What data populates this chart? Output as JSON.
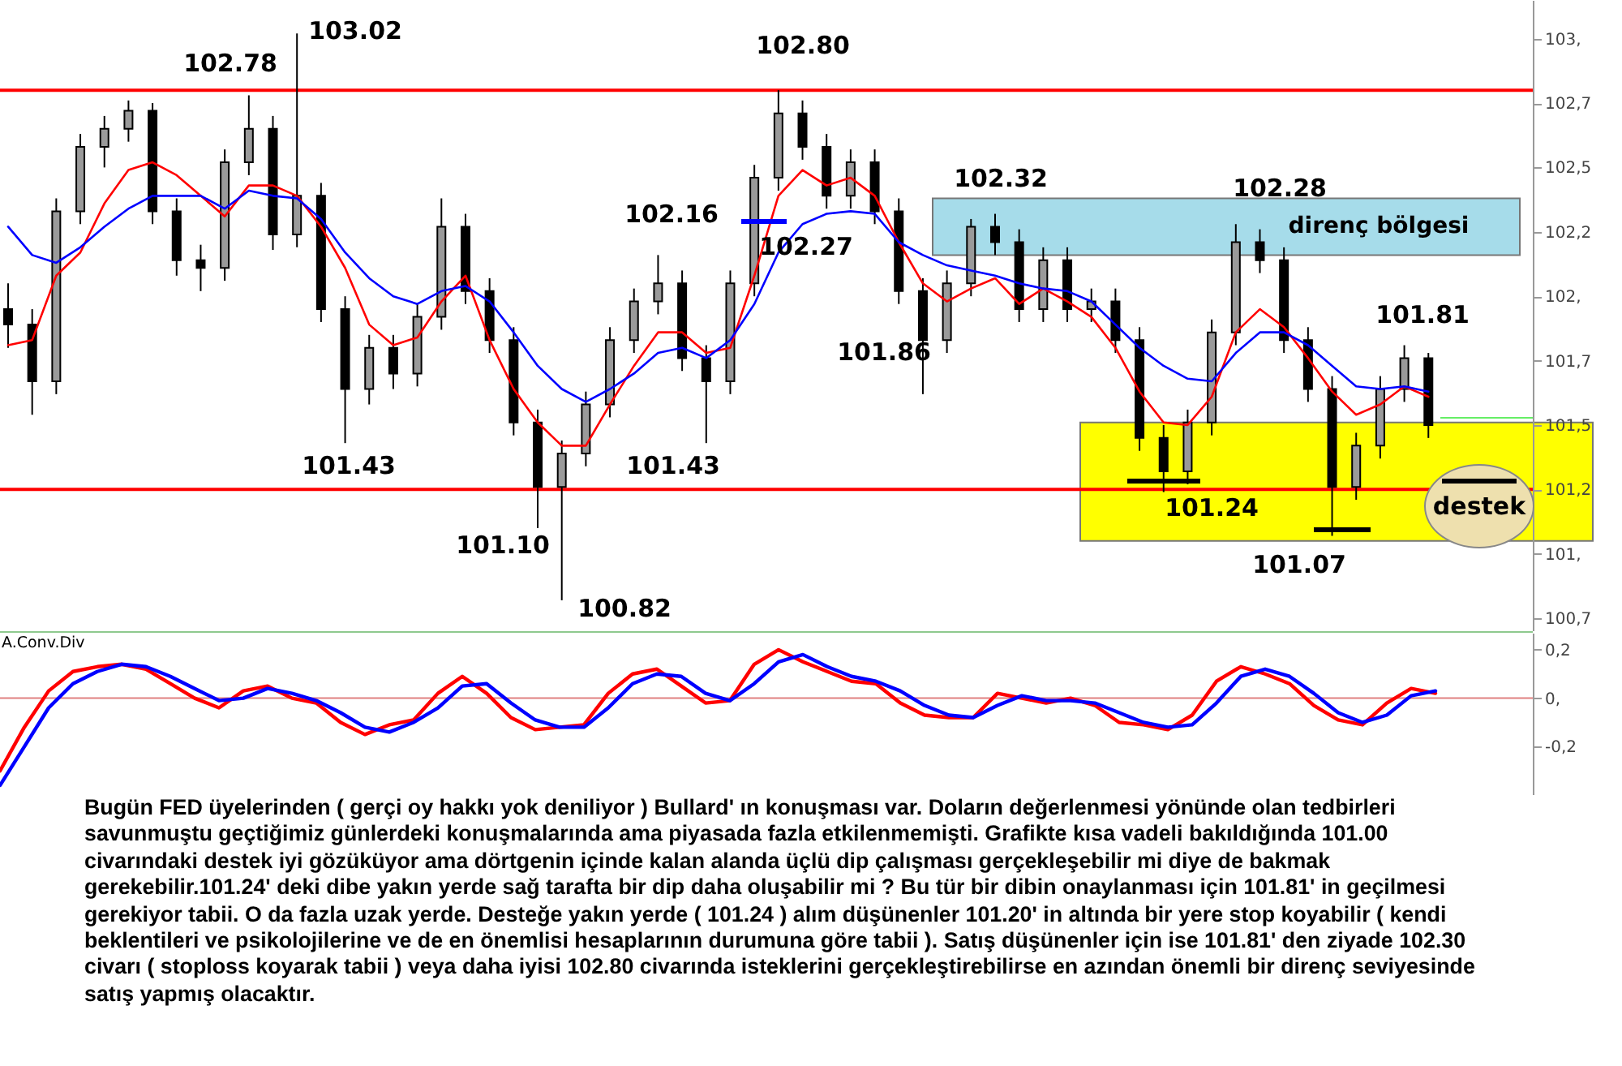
{
  "chart_data": [
    {
      "type": "candlestick",
      "categories": [
        null,
        null,
        null,
        null,
        null,
        null,
        null,
        null,
        null,
        null,
        null,
        null,
        null,
        null,
        null,
        null,
        null,
        null,
        null,
        null,
        null,
        null,
        null,
        null,
        null,
        null,
        null,
        null,
        null,
        null,
        null,
        null,
        null,
        null,
        null,
        null,
        null,
        null,
        null,
        null,
        null,
        null,
        null,
        null,
        null,
        null,
        null,
        null,
        null,
        null,
        null,
        null,
        null,
        null,
        null,
        null,
        null,
        null,
        null,
        null
      ],
      "color": "#000000",
      "ohlc": [
        [
          101.95,
          102.05,
          101.8,
          101.89
        ],
        [
          101.89,
          101.95,
          101.54,
          101.67
        ],
        [
          101.67,
          102.38,
          101.62,
          102.33
        ],
        [
          102.33,
          102.63,
          102.28,
          102.58
        ],
        [
          102.58,
          102.7,
          102.5,
          102.65
        ],
        [
          102.65,
          102.76,
          102.6,
          102.72
        ],
        [
          102.72,
          102.75,
          102.28,
          102.33
        ],
        [
          102.33,
          102.38,
          102.08,
          102.14
        ],
        [
          102.14,
          102.2,
          102.02,
          102.11
        ],
        [
          102.11,
          102.57,
          102.06,
          102.52
        ],
        [
          102.52,
          102.78,
          102.47,
          102.65
        ],
        [
          102.65,
          102.7,
          102.18,
          102.24
        ],
        [
          102.24,
          103.02,
          102.19,
          102.39
        ],
        [
          102.39,
          102.44,
          101.9,
          101.95
        ],
        [
          101.95,
          102.0,
          101.43,
          101.64
        ],
        [
          101.64,
          101.85,
          101.58,
          101.8
        ],
        [
          101.8,
          101.85,
          101.64,
          101.7
        ],
        [
          101.7,
          101.97,
          101.65,
          101.92
        ],
        [
          101.92,
          102.38,
          101.87,
          102.27
        ],
        [
          102.27,
          102.32,
          101.97,
          102.02
        ],
        [
          102.02,
          102.07,
          101.78,
          101.83
        ],
        [
          101.83,
          101.88,
          101.46,
          101.51
        ],
        [
          101.51,
          101.56,
          101.1,
          101.26
        ],
        [
          101.26,
          101.44,
          100.82,
          101.39
        ],
        [
          101.39,
          101.63,
          101.34,
          101.58
        ],
        [
          101.58,
          101.88,
          101.53,
          101.83
        ],
        [
          101.83,
          102.03,
          101.78,
          101.98
        ],
        [
          101.98,
          102.16,
          101.93,
          102.05
        ],
        [
          102.05,
          102.1,
          101.71,
          101.76
        ],
        [
          101.76,
          101.81,
          101.43,
          101.67
        ],
        [
          101.67,
          102.1,
          101.62,
          102.05
        ],
        [
          102.05,
          102.51,
          102.0,
          102.46
        ],
        [
          102.46,
          102.8,
          102.41,
          102.71
        ],
        [
          102.71,
          102.76,
          102.53,
          102.58
        ],
        [
          102.58,
          102.63,
          102.34,
          102.39
        ],
        [
          102.39,
          102.57,
          102.34,
          102.52
        ],
        [
          102.52,
          102.57,
          102.28,
          102.33
        ],
        [
          102.33,
          102.38,
          101.97,
          102.02
        ],
        [
          102.02,
          102.07,
          101.62,
          101.83
        ],
        [
          101.83,
          102.1,
          101.78,
          102.05
        ],
        [
          102.05,
          102.3,
          102.0,
          102.27
        ],
        [
          102.27,
          102.32,
          102.16,
          102.21
        ],
        [
          102.21,
          102.26,
          101.9,
          101.95
        ],
        [
          101.95,
          102.19,
          101.9,
          102.14
        ],
        [
          102.14,
          102.19,
          101.9,
          101.95
        ],
        [
          101.95,
          102.03,
          101.9,
          101.98
        ],
        [
          101.98,
          102.03,
          101.78,
          101.83
        ],
        [
          101.83,
          101.88,
          101.4,
          101.45
        ],
        [
          101.45,
          101.5,
          101.24,
          101.32
        ],
        [
          101.32,
          101.56,
          101.27,
          101.51
        ],
        [
          101.51,
          101.91,
          101.46,
          101.86
        ],
        [
          101.86,
          102.28,
          101.81,
          102.21
        ],
        [
          102.21,
          102.26,
          102.09,
          102.14
        ],
        [
          102.14,
          102.19,
          101.78,
          101.83
        ],
        [
          101.83,
          101.88,
          101.59,
          101.64
        ],
        [
          101.64,
          101.69,
          101.07,
          101.26
        ],
        [
          101.26,
          101.47,
          101.21,
          101.42
        ],
        [
          101.42,
          101.69,
          101.37,
          101.64
        ],
        [
          101.64,
          101.81,
          101.59,
          101.76
        ],
        [
          101.76,
          101.78,
          101.45,
          101.5
        ]
      ],
      "series": [
        {
          "type": "line",
          "color": "#ff0000",
          "values": [
            101.81,
            101.83,
            102.08,
            102.17,
            102.36,
            102.49,
            102.52,
            102.47,
            102.39,
            102.31,
            102.43,
            102.43,
            102.39,
            102.27,
            102.11,
            101.89,
            101.81,
            101.84,
            101.98,
            102.08,
            101.83,
            101.64,
            101.51,
            101.42,
            101.42,
            101.58,
            101.73,
            101.86,
            101.86,
            101.78,
            101.8,
            102.08,
            102.39,
            102.49,
            102.43,
            102.46,
            102.39,
            102.21,
            102.05,
            101.98,
            102.03,
            102.07,
            101.97,
            102.03,
            101.98,
            101.92,
            101.8,
            101.63,
            101.51,
            101.5,
            101.61,
            101.86,
            101.95,
            101.88,
            101.76,
            101.63,
            101.54,
            101.58,
            101.65,
            101.61
          ]
        },
        {
          "type": "line",
          "color": "#0000ff",
          "values": [
            102.27,
            102.16,
            102.13,
            102.19,
            102.27,
            102.34,
            102.39,
            102.39,
            102.39,
            102.34,
            102.41,
            102.39,
            102.38,
            102.3,
            102.17,
            102.07,
            102.0,
            101.97,
            102.02,
            102.04,
            101.98,
            101.86,
            101.73,
            101.64,
            101.59,
            101.64,
            101.7,
            101.78,
            101.8,
            101.76,
            101.83,
            101.97,
            102.17,
            102.28,
            102.32,
            102.33,
            102.32,
            102.21,
            102.16,
            102.12,
            102.1,
            102.08,
            102.05,
            102.03,
            102.02,
            101.98,
            101.89,
            101.8,
            101.73,
            101.68,
            101.67,
            101.78,
            101.86,
            101.86,
            101.81,
            101.73,
            101.65,
            101.64,
            101.65,
            101.63
          ]
        }
      ],
      "ylim": [
        100.7,
        103.15
      ],
      "yticks": [
        {
          "value": 103,
          "label": "103,"
        },
        {
          "value": 102.75,
          "label": "102,7"
        },
        {
          "value": 102.5,
          "label": "102,5"
        },
        {
          "value": 102.25,
          "label": "102,2"
        },
        {
          "value": 102,
          "label": "102,"
        },
        {
          "value": 101.75,
          "label": "101,7"
        },
        {
          "value": 101.5,
          "label": "101,5"
        },
        {
          "value": 101.25,
          "label": "101,2"
        },
        {
          "value": 101,
          "label": "101,"
        },
        {
          "value": 100.75,
          "label": "100,7"
        }
      ],
      "tick_labels": "y",
      "ref_lines": [
        {
          "axis": "y",
          "value": 102.8,
          "color": "#ff0000"
        },
        {
          "axis": "y",
          "value": 101.25,
          "color": "#ff0000"
        }
      ],
      "bands": [
        {
          "axis": "y",
          "from": 102.16,
          "to": 102.38,
          "label": "direnç bölgesi",
          "color": "#a6dcea"
        },
        {
          "axis": "y",
          "from": 101.05,
          "to": 101.51,
          "color": "#ffff00"
        }
      ],
      "annotations": [
        "102.78",
        "103.02",
        "102.80",
        "102.16",
        "102.27",
        "101.43",
        "101.10",
        "100.82",
        "101.43",
        "101.86",
        "102.32",
        "102.28",
        "101.24",
        "101.07",
        "101.81",
        "destek"
      ]
    },
    {
      "type": "line",
      "title": "A.Conv.Div",
      "categories": [
        null,
        null,
        null,
        null,
        null,
        null,
        null,
        null,
        null,
        null,
        null,
        null,
        null,
        null,
        null,
        null,
        null,
        null,
        null,
        null,
        null,
        null,
        null,
        null,
        null,
        null,
        null,
        null,
        null,
        null,
        null,
        null,
        null,
        null,
        null,
        null,
        null,
        null,
        null,
        null,
        null,
        null,
        null,
        null,
        null,
        null,
        null,
        null,
        null,
        null,
        null,
        null,
        null,
        null,
        null,
        null,
        null,
        null,
        null,
        null
      ],
      "series": [
        {
          "color": "#ff0000",
          "values": [
            -0.3,
            -0.12,
            0.03,
            0.11,
            0.13,
            0.14,
            0.12,
            0.06,
            0.0,
            -0.04,
            0.03,
            0.05,
            0.0,
            -0.02,
            -0.1,
            -0.15,
            -0.11,
            -0.09,
            0.02,
            0.09,
            0.02,
            -0.08,
            -0.13,
            -0.12,
            -0.11,
            0.02,
            0.1,
            0.12,
            0.05,
            -0.02,
            -0.01,
            0.14,
            0.2,
            0.15,
            0.11,
            0.07,
            0.06,
            -0.02,
            -0.07,
            -0.08,
            -0.08,
            0.02,
            0.0,
            -0.02,
            0.0,
            -0.03,
            -0.1,
            -0.11,
            -0.13,
            -0.07,
            0.07,
            0.13,
            0.1,
            0.06,
            -0.03,
            -0.09,
            -0.11,
            -0.02,
            0.04,
            0.02
          ]
        },
        {
          "color": "#0000ff",
          "values": [
            -0.36,
            -0.2,
            -0.04,
            0.06,
            0.11,
            0.14,
            0.13,
            0.09,
            0.04,
            -0.01,
            0.0,
            0.04,
            0.02,
            -0.01,
            -0.06,
            -0.12,
            -0.14,
            -0.1,
            -0.04,
            0.05,
            0.06,
            -0.02,
            -0.09,
            -0.12,
            -0.12,
            -0.04,
            0.06,
            0.1,
            0.09,
            0.02,
            -0.01,
            0.06,
            0.15,
            0.18,
            0.13,
            0.09,
            0.07,
            0.03,
            -0.03,
            -0.07,
            -0.08,
            -0.03,
            0.01,
            -0.01,
            -0.01,
            -0.02,
            -0.06,
            -0.1,
            -0.12,
            -0.11,
            -0.02,
            0.09,
            0.12,
            0.09,
            0.02,
            -0.06,
            -0.1,
            -0.07,
            0.01,
            0.03
          ]
        }
      ],
      "ylim": [
        -0.4,
        0.27
      ],
      "yticks": [
        {
          "value": 0.2,
          "label": "0,2"
        },
        {
          "value": 0,
          "label": "0,"
        },
        {
          "value": -0.2,
          "label": "-0,2"
        }
      ],
      "tick_labels": "y",
      "ref_lines": [
        {
          "axis": "y",
          "value": 0,
          "color": "#e08080"
        }
      ],
      "annotations": [
        "Bugün FED üyelerinden ( gerçi oy hakkı yok deniliyor ) Bullard' ın konuşması var. Doların değerlenmesi yönünde olan tedbirleri\nsavunmuştu geçtiğimiz günlerdeki konuşmalarında ama piyasada fazla etkilenmemişti. Grafikte kısa vadeli bakıldığında 101.00\ncivarındaki destek iyi gözüküyor ama dörtgenin içinde kalan alanda üçlü dip çalışması gerçekleşebilir mi diye de bakmak\ngerekebilir.101.24' deki dibe yakın yerde sağ tarafta bir dip daha oluşabilir mi ? Bu tür bir dibin onaylanması için 101.81' in geçilmesi\ngerekiyor tabii. O da fazla uzak yerde. Desteğe yakın yerde ( 101.24 ) alım düşünenler 101.20' in altında bir yere stop koyabilir ( kendi\nbeklentileri ve psikolojilerine ve de en önemlisi hesaplarının durumuna göre tabii ). Satış düşünenler için ise 101.81' den ziyade 102.30\ncivarı ( stoploss koyarak tabii ) veya daha iyisi 102.80 civarında isteklerini gerçekleştirebilirse en azından önemli bir direnç seviyesinde\nsatış yapmış olacaktır."
      ]
    }
  ]
}
